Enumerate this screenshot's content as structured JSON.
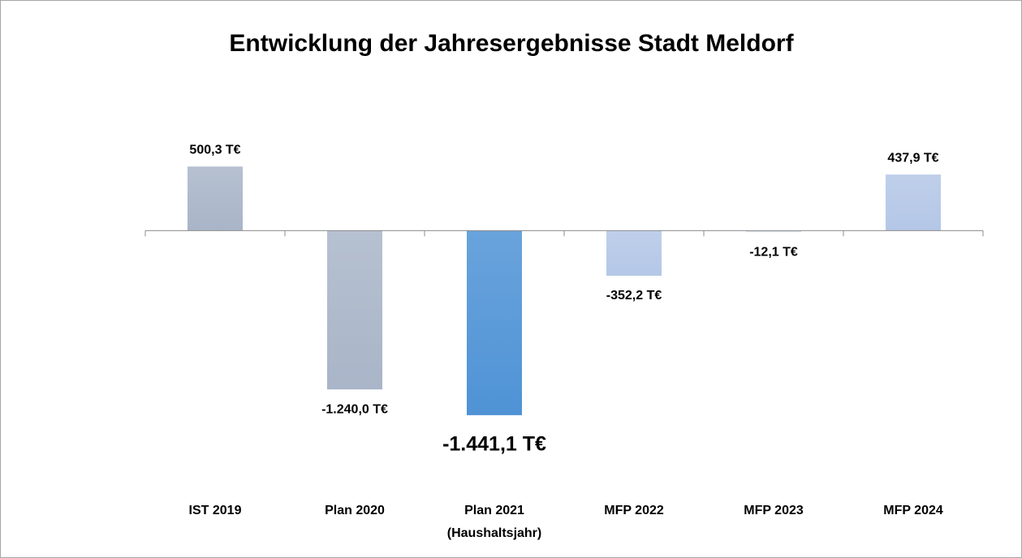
{
  "chart_data": {
    "type": "bar",
    "title": "Entwicklung der Jahresergebnisse Stadt Meldorf",
    "categories": [
      "IST 2019",
      "Plan 2020",
      "Plan 2021\n(Haushaltsjahr)",
      "MFP 2022",
      "MFP 2023",
      "MFP 2024"
    ],
    "values": [
      500.3,
      -1240.0,
      -1441.1,
      -352.2,
      -12.1,
      437.9
    ],
    "value_labels": [
      "500,3 T€",
      "-1.240,0 T€",
      "-1.441,1 T€",
      "-352,2 T€",
      "-12,1 T€",
      "437,9 T€"
    ],
    "colors": [
      "#a9b5c8",
      "#a9b5c8",
      "#4f93d6",
      "#b4c7e7",
      "#d6dde9",
      "#b4c7e7"
    ],
    "ylim": [
      -1600,
      800
    ]
  }
}
